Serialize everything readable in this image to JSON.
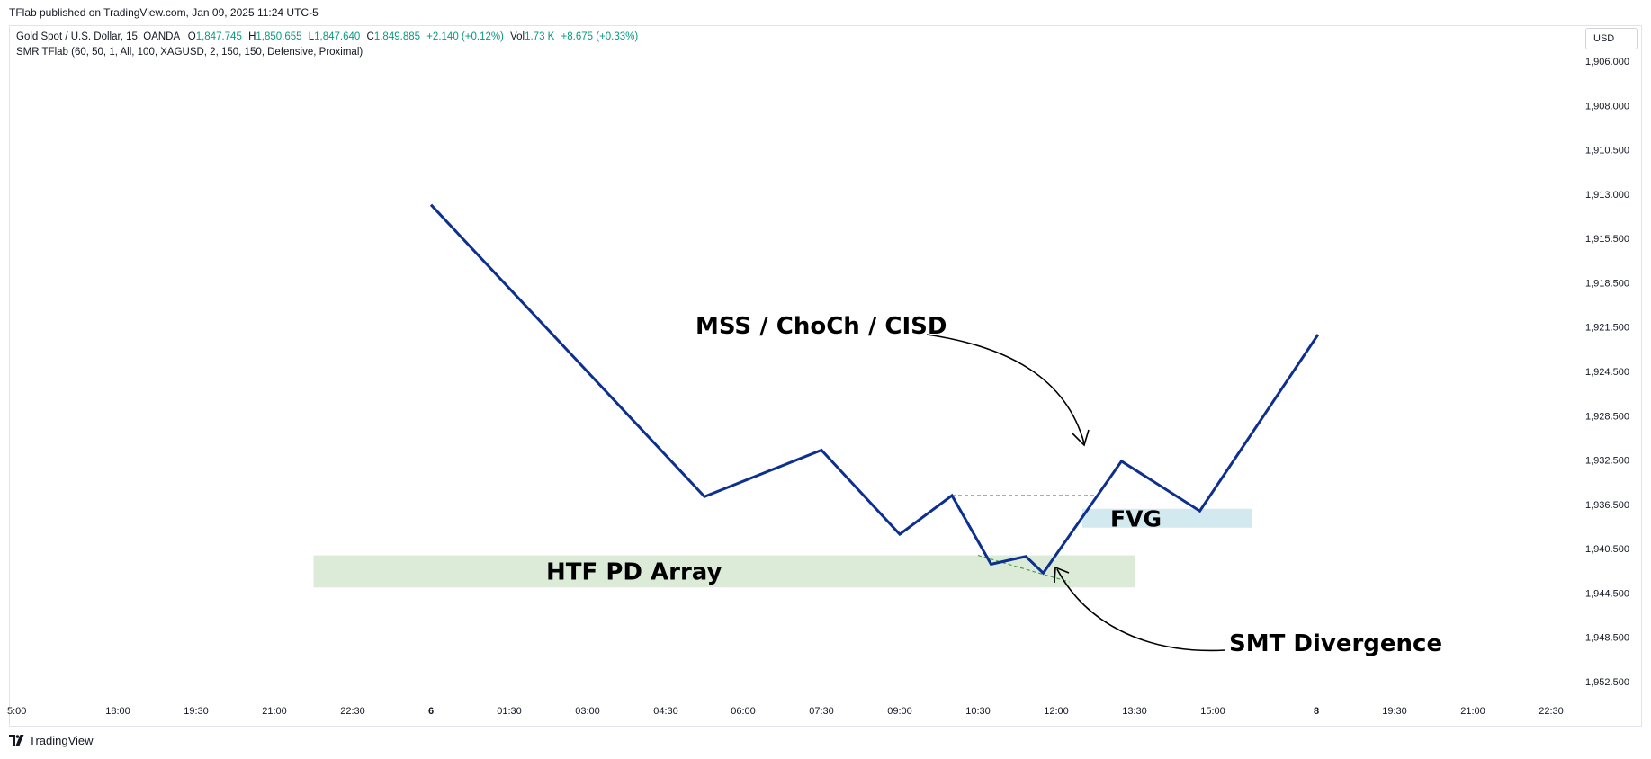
{
  "header": {
    "publisher": "TFlab published on TradingView.com, Jan 09, 2025 11:24 UTC-5"
  },
  "legend": {
    "symbol": "Gold Spot / U.S. Dollar, 15, OANDA",
    "o_label": "O",
    "o_value": "1,847.745",
    "h_label": "H",
    "h_value": "1,850.655",
    "l_label": "L",
    "l_value": "1,847.640",
    "c_label": "C",
    "c_value": "1,849.885",
    "change": "+2.140 (+0.12%)",
    "vol_label": "Vol",
    "vol_value": "1.73 K",
    "vol_change": "+8.675 (+0.33%)",
    "indicator": "SMR TFlab (60, 50, 1, All, 100, XAGUSD, 2, 150, 150, Defensive, Proximal)"
  },
  "currency": "USD",
  "footer": {
    "brand": "TradingView"
  },
  "colors": {
    "price_line": "#0d2f8f",
    "pd_array_zone": "#dcebd8",
    "fvg_zone": "#d2e9ef",
    "dashed": "#43a047",
    "value_green": "#089981"
  },
  "chart_data": {
    "type": "line",
    "price_axis_labels": [
      "1,906.000",
      "1,908.000",
      "1,910.500",
      "1,913.000",
      "1,915.500",
      "1,918.500",
      "1,921.500",
      "1,924.500",
      "1,928.500",
      "1,932.500",
      "1,936.500",
      "1,940.500",
      "1,944.500",
      "1,948.500",
      "1,952.500"
    ],
    "price_axis_inverted": true,
    "time_axis_labels": [
      "5:00",
      "18:00",
      "19:30",
      "21:00",
      "22:30",
      "6",
      "01:30",
      "03:00",
      "04:30",
      "06:00",
      "07:30",
      "09:00",
      "10:30",
      "12:00",
      "13:30",
      "15:00",
      "8",
      "19:30",
      "21:00",
      "22:30"
    ],
    "series": [
      {
        "x": [
          "6",
          "05:15",
          "07:30",
          "09:00",
          "10:00",
          "10:45",
          "11:25",
          "11:45",
          "13:15",
          "14:45",
          "18:45"
        ],
        "values": [
          1913.6,
          1935.8,
          1931.6,
          1939.2,
          1935.7,
          1941.9,
          1941.2,
          1942.7,
          1932.6,
          1937.1,
          1922.0
        ]
      }
    ],
    "zones": [
      {
        "label": "HTF PD Array",
        "x_start": "21:45",
        "x_end": "13:30",
        "y_top": 1941.1,
        "y_bottom": 1944.0
      },
      {
        "label": "FVG",
        "x_start": "12:30",
        "x_end": "15:45",
        "y_top": 1936.9,
        "y_bottom": 1938.6
      }
    ],
    "dashed_levels": [
      {
        "from_x": "10:00",
        "to_x": "12:45",
        "y": 1935.7
      },
      {
        "from_x": "10:30",
        "to_x": "12:15",
        "y": [
          1941.1,
          1943.5
        ]
      }
    ],
    "annotations": [
      {
        "text": "MSS / ChoCh / CISD",
        "points_to": "12:30"
      },
      {
        "text": "SMT Divergence",
        "points_to": "11:45"
      }
    ],
    "grid": false
  }
}
